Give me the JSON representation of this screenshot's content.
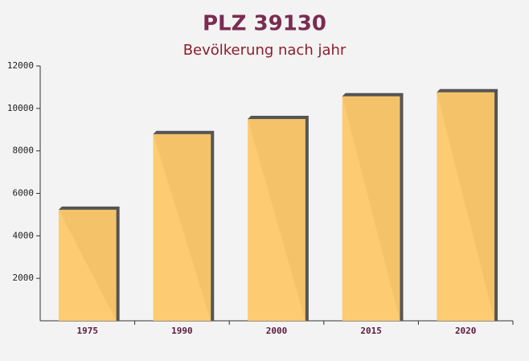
{
  "chart_data": {
    "type": "bar",
    "title": "PLZ 39130",
    "subtitle": "Bevölkerung nach jahr",
    "categories": [
      "1975",
      "1990",
      "2000",
      "2015",
      "2020"
    ],
    "values": [
      5230,
      8790,
      9500,
      10570,
      10760
    ],
    "color": "#fdc86a",
    "ylim": [
      0,
      12000
    ],
    "yticks": [
      2000,
      4000,
      6000,
      8000,
      10000,
      12000
    ],
    "grid": false
  }
}
